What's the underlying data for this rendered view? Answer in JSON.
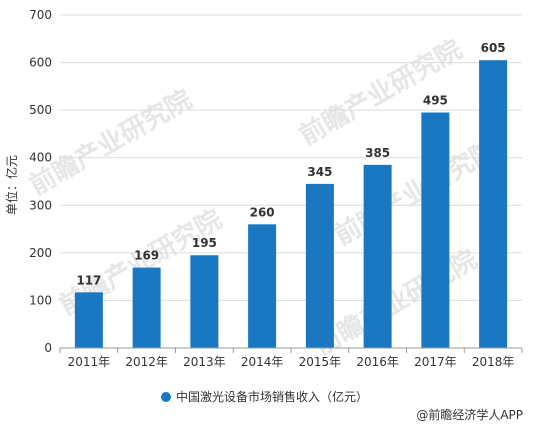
{
  "chart_data": {
    "type": "bar",
    "categories": [
      "2011年",
      "2012年",
      "2013年",
      "2014年",
      "2015年",
      "2016年",
      "2017年",
      "2018年"
    ],
    "series": [
      {
        "name": "中国激光设备市场销售收入（亿元）",
        "values": [
          117,
          169,
          195,
          260,
          345,
          385,
          495,
          605
        ],
        "color": "#1a78c2"
      }
    ],
    "ylabel": "单位：亿元",
    "ylim": [
      0,
      700
    ],
    "yticks": [
      0,
      100,
      200,
      300,
      400,
      500,
      600,
      700
    ],
    "grid": true,
    "legend_position": "bottom-center",
    "data_labels": true
  },
  "footer": {
    "credit": "@前瞻经济学人APP"
  },
  "watermark": {
    "text": "前瞻产业研究院",
    "color": "#e6e6e6"
  }
}
